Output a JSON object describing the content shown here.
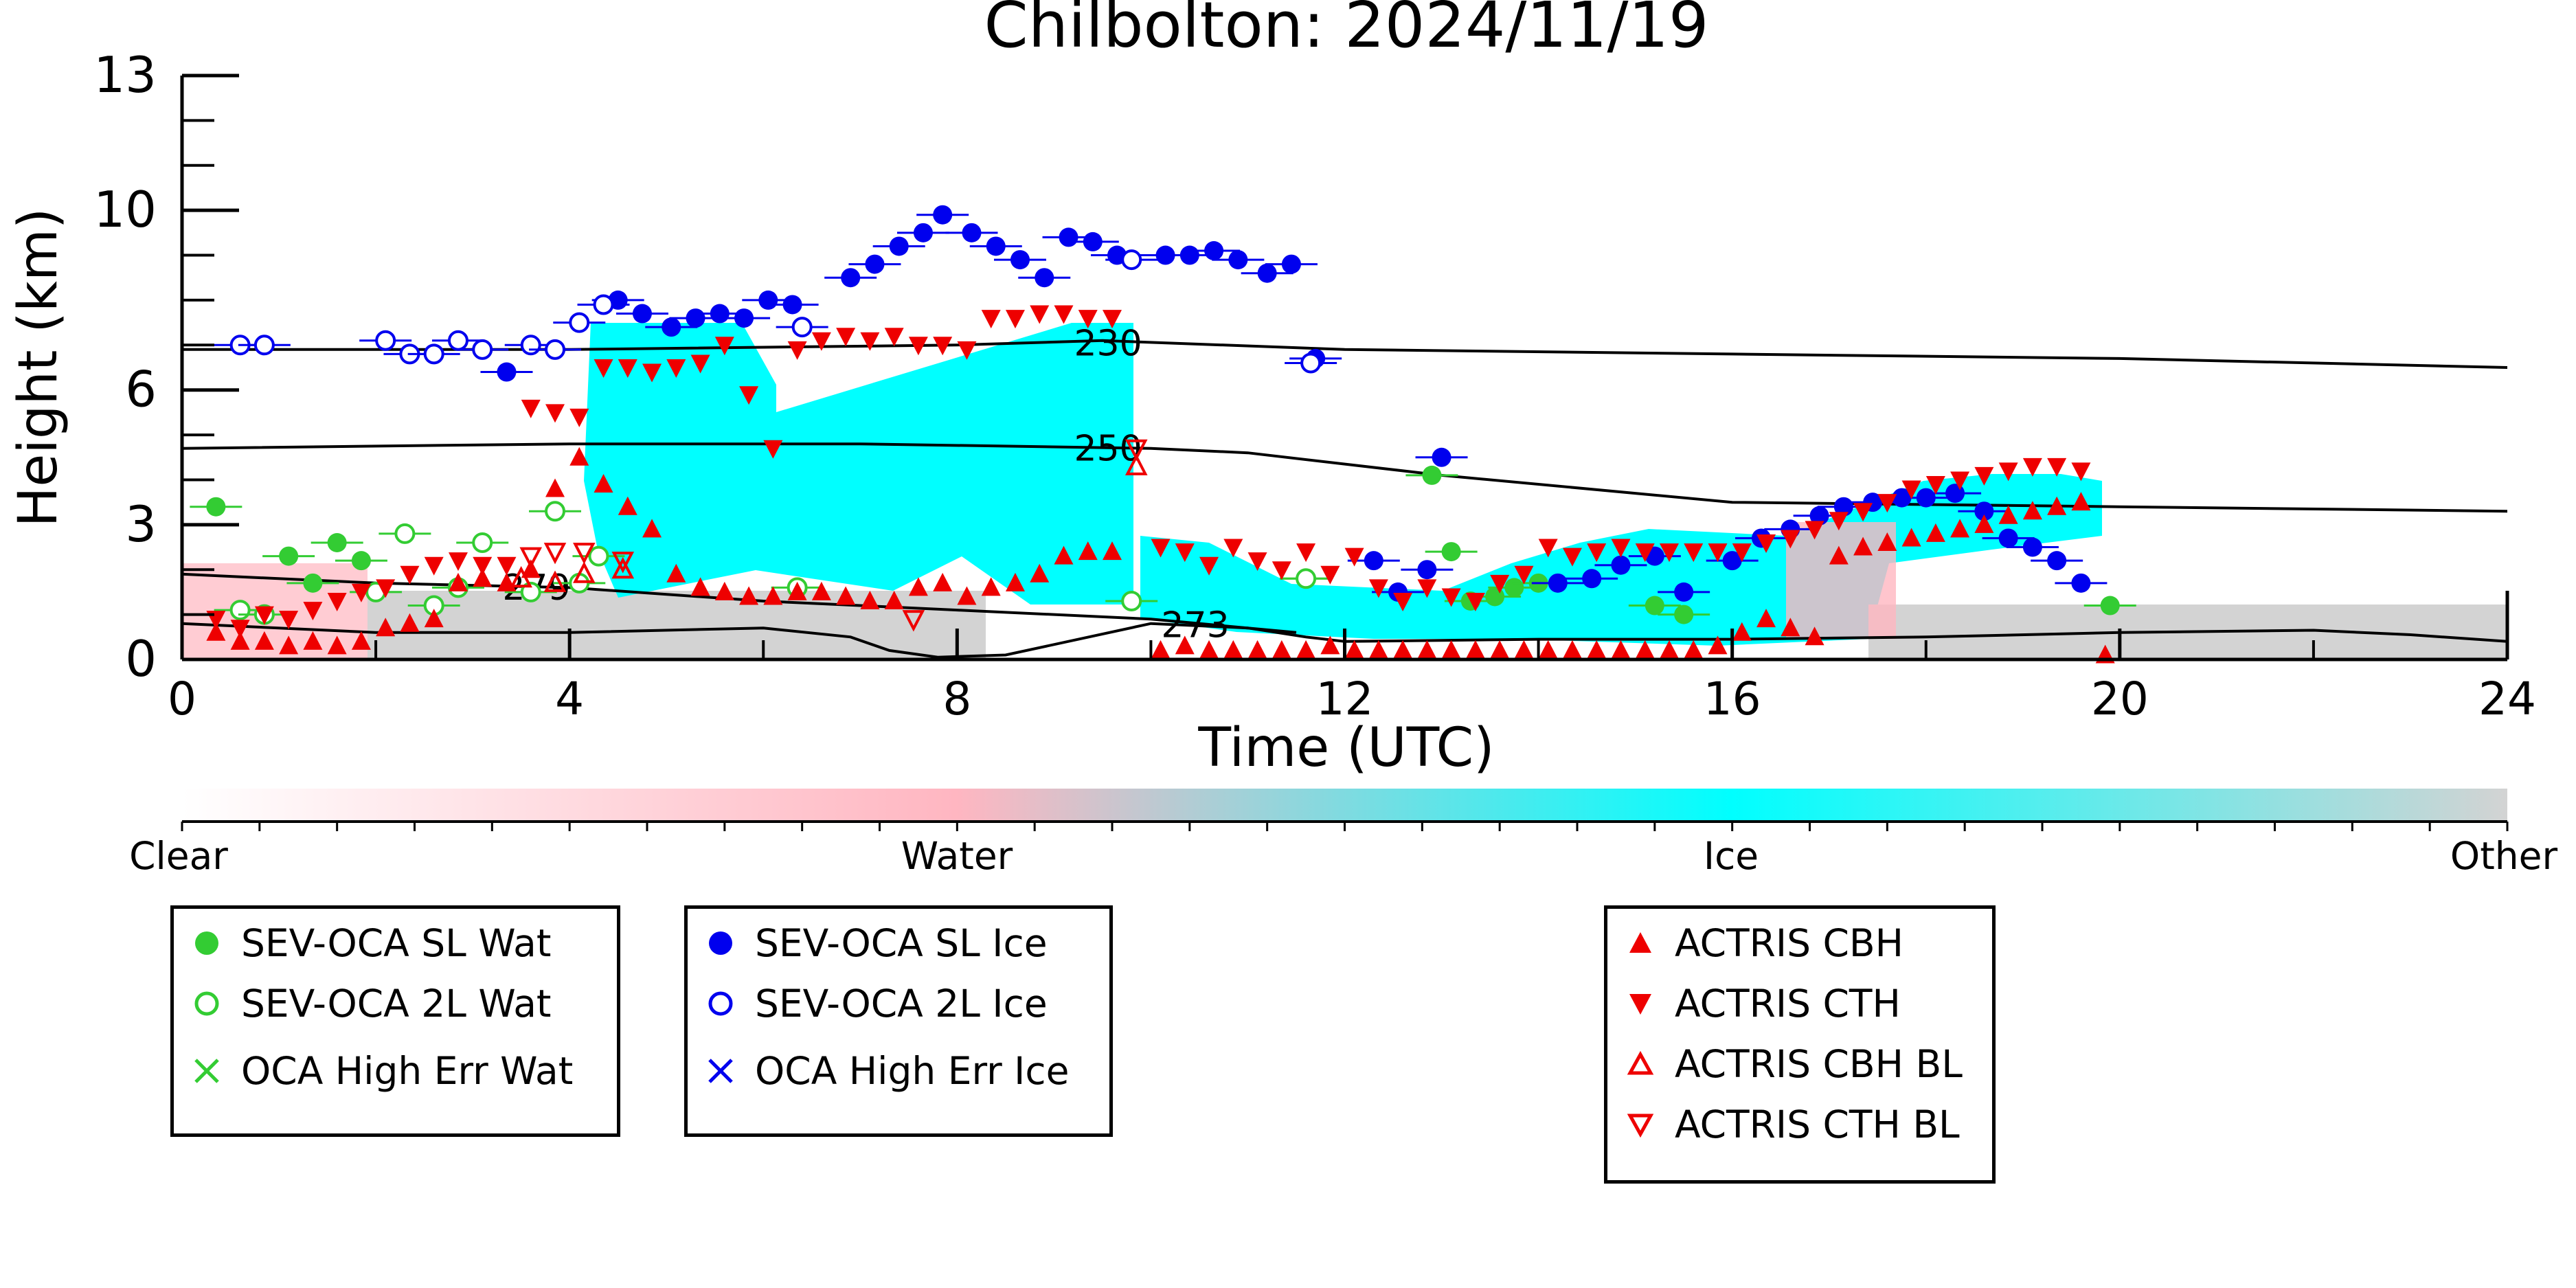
{
  "chart_data": {
    "type": "scatter",
    "title": "Chilbolton: 2024/11/19",
    "xlabel": "Time (UTC)",
    "ylabel": "Height (km)",
    "xlim": [
      0,
      24
    ],
    "ylim": [
      0,
      13
    ],
    "xticks": [
      "0",
      "4",
      "8",
      "12",
      "16",
      "20",
      "24"
    ],
    "yticks": [
      "0",
      "3",
      "6",
      "10",
      "13"
    ],
    "colorbar": {
      "labels": [
        "Clear",
        "Water",
        "Ice",
        "Other"
      ],
      "colors": [
        "#ffffff",
        "#ffb6c1",
        "#00ffff",
        "#d3d3d3"
      ]
    },
    "contours": [
      {
        "label": "230",
        "points": [
          [
            0,
            6.9
          ],
          [
            4,
            6.9
          ],
          [
            8,
            7.0
          ],
          [
            9.5,
            7.1
          ],
          [
            12,
            6.9
          ],
          [
            16,
            6.8
          ],
          [
            20,
            6.7
          ],
          [
            24,
            6.5
          ]
        ]
      },
      {
        "label": "250",
        "points": [
          [
            0,
            4.7
          ],
          [
            4,
            4.8
          ],
          [
            7,
            4.8
          ],
          [
            10,
            4.7
          ],
          [
            11,
            4.6
          ],
          [
            13,
            4.1
          ],
          [
            15,
            3.7
          ],
          [
            16,
            3.5
          ],
          [
            20,
            3.4
          ],
          [
            24,
            3.3
          ]
        ]
      },
      {
        "label": "279",
        "points": [
          [
            0,
            1.9
          ],
          [
            2,
            1.7
          ],
          [
            4,
            1.6
          ],
          [
            6,
            1.3
          ],
          [
            8,
            1.1
          ],
          [
            10,
            0.9
          ],
          [
            11.5,
            0.6
          ]
        ]
      },
      {
        "label": "273",
        "points": [
          [
            0,
            0.8
          ],
          [
            2,
            0.6
          ],
          [
            4,
            0.6
          ],
          [
            6,
            0.7
          ],
          [
            6.9,
            0.5
          ],
          [
            7.3,
            0.2
          ],
          [
            7.8,
            0.05
          ],
          [
            8.5,
            0.1
          ],
          [
            10,
            0.8
          ],
          [
            11,
            0.7
          ],
          [
            11.6,
            0.5
          ],
          [
            12,
            0.4
          ],
          [
            14,
            0.45
          ],
          [
            16,
            0.45
          ],
          [
            18,
            0.5
          ],
          [
            20,
            0.6
          ],
          [
            22,
            0.65
          ],
          [
            23,
            0.55
          ],
          [
            24,
            0.4
          ]
        ]
      }
    ],
    "series": [
      {
        "name": "SEV-OCA SL Wat",
        "color": "#33cc33",
        "marker": "circle-filled",
        "x": [
          0.35,
          1.1,
          1.35,
          1.6,
          1.85,
          11.6,
          12.9,
          13.1,
          13.3,
          13.55,
          13.75,
          14.0,
          15.2,
          15.5,
          19.9
        ],
        "y": [
          3.4,
          2.3,
          1.7,
          2.6,
          2.2,
          1.8,
          4.1,
          2.4,
          1.3,
          1.4,
          1.6,
          1.7,
          1.2,
          1.0,
          1.2
        ]
      },
      {
        "name": "SEV-OCA 2L Wat",
        "color": "#33cc33",
        "marker": "circle-open",
        "x": [
          0.6,
          0.85,
          2.0,
          2.3,
          2.6,
          2.85,
          3.1,
          3.6,
          3.85,
          4.1,
          4.3,
          6.35,
          9.8,
          11.6
        ],
        "y": [
          1.1,
          1.0,
          1.5,
          2.8,
          1.2,
          1.6,
          2.6,
          1.5,
          3.3,
          1.7,
          2.3,
          1.6,
          1.3,
          1.8
        ]
      },
      {
        "name": "OCA High Err Wat",
        "color": "#33cc33",
        "marker": "x",
        "x": [],
        "y": []
      },
      {
        "name": "SEV-OCA SL Ice",
        "color": "#0000ee",
        "marker": "circle-filled",
        "x": [
          3.35,
          4.5,
          4.75,
          5.05,
          5.3,
          5.55,
          5.8,
          6.05,
          6.3,
          6.9,
          7.15,
          7.4,
          7.65,
          7.85,
          8.15,
          8.4,
          8.65,
          8.9,
          9.15,
          9.4,
          9.65,
          10.15,
          10.4,
          10.65,
          10.9,
          11.2,
          11.45,
          11.7,
          12.3,
          12.55,
          12.85,
          13.0,
          14.2,
          14.55,
          14.85,
          15.2,
          15.5,
          16.0,
          16.3,
          16.6,
          16.9,
          17.15,
          17.45,
          17.75,
          18.0,
          18.3,
          18.6,
          18.85,
          19.1,
          19.35,
          19.6
        ],
        "y": [
          6.4,
          8.0,
          7.7,
          7.4,
          7.6,
          7.7,
          7.6,
          8.0,
          7.9,
          8.5,
          8.8,
          9.2,
          9.5,
          9.9,
          9.5,
          9.2,
          8.9,
          8.5,
          9.4,
          9.3,
          9.0,
          9.0,
          9.0,
          9.1,
          8.9,
          8.6,
          8.8,
          6.7,
          2.2,
          1.5,
          2.0,
          4.5,
          1.7,
          1.8,
          2.1,
          2.3,
          1.5,
          2.2,
          2.7,
          2.9,
          3.2,
          3.4,
          3.5,
          3.6,
          3.6,
          3.7,
          3.3,
          2.7,
          2.5,
          2.2,
          1.7
        ]
      },
      {
        "name": "SEV-OCA 2L Ice",
        "color": "#0000ee",
        "marker": "circle-open",
        "x": [
          0.6,
          0.85,
          2.1,
          2.35,
          2.6,
          2.85,
          3.1,
          3.6,
          3.85,
          4.1,
          4.35,
          6.4,
          9.8,
          11.65
        ],
        "y": [
          7.0,
          7.0,
          7.1,
          6.8,
          6.8,
          7.1,
          6.9,
          7.0,
          6.9,
          7.5,
          7.9,
          7.4,
          8.9,
          6.6
        ]
      },
      {
        "name": "OCA High Err Ice",
        "color": "#0000ee",
        "marker": "x",
        "x": [],
        "y": []
      },
      {
        "name": "ACTRIS CBH",
        "color": "#ee0000",
        "marker": "triangle-up-filled",
        "x": [
          0.35,
          0.6,
          0.85,
          1.1,
          1.35,
          1.6,
          1.85,
          2.1,
          2.35,
          2.6,
          2.85,
          3.1,
          3.35,
          3.6,
          3.85,
          4.1,
          4.35,
          4.6,
          4.85,
          5.1,
          5.35,
          5.6,
          5.85,
          6.1,
          6.35,
          6.6,
          6.85,
          7.1,
          7.35,
          7.6,
          7.85,
          8.1,
          8.35,
          8.6,
          8.85,
          9.1,
          9.35,
          9.6,
          10.1,
          10.35,
          10.6,
          10.85,
          11.1,
          11.35,
          11.6,
          11.85,
          12.1,
          12.35,
          12.6,
          12.85,
          13.1,
          13.35,
          13.6,
          13.85,
          14.1,
          14.35,
          14.6,
          14.85,
          15.1,
          15.35,
          15.6,
          15.85,
          16.1,
          16.35,
          16.6,
          16.85,
          17.1,
          17.35,
          17.6,
          17.85,
          18.1,
          18.35,
          18.6,
          18.85,
          19.1,
          19.35,
          19.6,
          19.85
        ],
        "y": [
          0.6,
          0.4,
          0.4,
          0.3,
          0.4,
          0.3,
          0.4,
          0.7,
          0.8,
          0.9,
          1.7,
          1.8,
          1.7,
          2.0,
          3.8,
          4.5,
          3.9,
          3.4,
          2.9,
          1.9,
          1.6,
          1.5,
          1.4,
          1.4,
          1.5,
          1.5,
          1.4,
          1.3,
          1.3,
          1.6,
          1.7,
          1.4,
          1.6,
          1.7,
          1.9,
          2.3,
          2.4,
          2.4,
          0.2,
          0.3,
          0.2,
          0.2,
          0.2,
          0.2,
          0.2,
          0.3,
          0.2,
          0.2,
          0.2,
          0.2,
          0.2,
          0.2,
          0.2,
          0.2,
          0.2,
          0.2,
          0.2,
          0.2,
          0.2,
          0.2,
          0.2,
          0.3,
          0.6,
          0.9,
          0.7,
          0.5,
          2.3,
          2.5,
          2.6,
          2.7,
          2.8,
          2.9,
          3.0,
          3.2,
          3.3,
          3.4,
          3.5,
          0.1
        ]
      },
      {
        "name": "ACTRIS CTH",
        "color": "#ee0000",
        "marker": "triangle-down-filled",
        "x": [
          0.35,
          0.6,
          0.85,
          1.1,
          1.35,
          1.6,
          1.85,
          2.1,
          2.35,
          2.6,
          2.85,
          3.1,
          3.35,
          3.6,
          3.85,
          4.1,
          4.35,
          4.6,
          4.85,
          5.1,
          5.35,
          5.6,
          5.85,
          6.1,
          6.35,
          6.6,
          6.85,
          7.1,
          7.35,
          7.6,
          7.85,
          8.1,
          8.35,
          8.6,
          8.85,
          9.1,
          9.35,
          9.6,
          10.1,
          10.35,
          10.6,
          10.85,
          11.1,
          11.35,
          11.6,
          11.85,
          12.1,
          12.35,
          12.6,
          12.85,
          13.1,
          13.35,
          13.6,
          13.85,
          14.1,
          14.35,
          14.6,
          14.85,
          15.1,
          15.35,
          15.6,
          15.85,
          16.1,
          16.35,
          16.6,
          16.85,
          17.1,
          17.35,
          17.6,
          17.85,
          18.1,
          18.35,
          18.6,
          18.85,
          19.1,
          19.35,
          19.6
        ],
        "y": [
          0.9,
          0.7,
          1.0,
          0.9,
          1.1,
          1.3,
          1.5,
          1.6,
          1.9,
          2.1,
          2.2,
          2.1,
          2.1,
          5.6,
          5.5,
          5.4,
          6.5,
          6.5,
          6.4,
          6.5,
          6.6,
          7.0,
          5.9,
          4.7,
          6.9,
          7.1,
          7.2,
          7.1,
          7.2,
          7.0,
          7.0,
          6.9,
          7.6,
          7.6,
          7.7,
          7.7,
          7.6,
          7.6,
          2.5,
          2.4,
          2.1,
          2.5,
          2.2,
          2.0,
          2.4,
          1.9,
          2.3,
          1.6,
          1.3,
          1.6,
          1.4,
          1.3,
          1.7,
          1.9,
          2.5,
          2.3,
          2.4,
          2.5,
          2.4,
          2.4,
          2.4,
          2.4,
          2.4,
          2.6,
          2.7,
          2.9,
          3.1,
          3.3,
          3.5,
          3.8,
          3.9,
          4.0,
          4.1,
          4.2,
          4.3,
          4.3,
          4.2
        ]
      },
      {
        "name": "ACTRIS CBH BL",
        "color": "#ee0000",
        "marker": "triangle-up-open",
        "x": [
          3.5,
          3.85,
          4.15,
          4.55,
          9.85
        ],
        "y": [
          1.8,
          1.7,
          1.9,
          2.0,
          4.3
        ]
      },
      {
        "name": "ACTRIS CTH BL",
        "color": "#ee0000",
        "marker": "triangle-down-open",
        "x": [
          3.6,
          3.85,
          4.15,
          4.55,
          7.55,
          9.85
        ],
        "y": [
          2.3,
          2.4,
          2.4,
          2.2,
          0.9,
          4.7
        ]
      }
    ]
  }
}
